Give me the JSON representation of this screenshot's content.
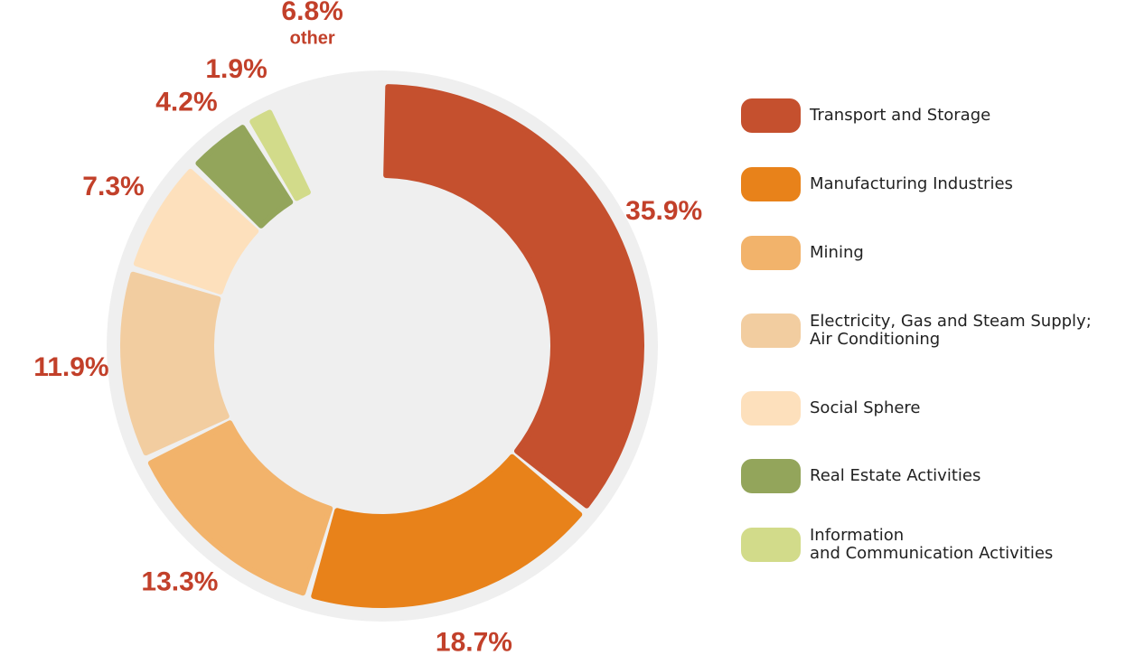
{
  "chart_data": {
    "type": "donut",
    "categories": [
      "Transport and Storage",
      "Manufacturing Industries",
      "Mining",
      "Electricity, Gas and Steam Supply;\nAir Conditioning",
      "Social Sphere",
      "Real Estate Activities",
      "Information\nand Communication Activities"
    ],
    "values": [
      35.9,
      18.7,
      13.3,
      11.9,
      7.3,
      4.2,
      1.9
    ],
    "value_labels": [
      "35.9%",
      "18.7%",
      "13.3%",
      "11.9%",
      "7.3%",
      "4.2%",
      "1.9%"
    ],
    "colors": [
      "#c5502e",
      "#e8821a",
      "#f2b36b",
      "#f2cda0",
      "#fde0bc",
      "#93a55b",
      "#d2db8a"
    ],
    "remainder": {
      "name": "other",
      "value": 6.8,
      "value_label": "6.8%"
    }
  }
}
